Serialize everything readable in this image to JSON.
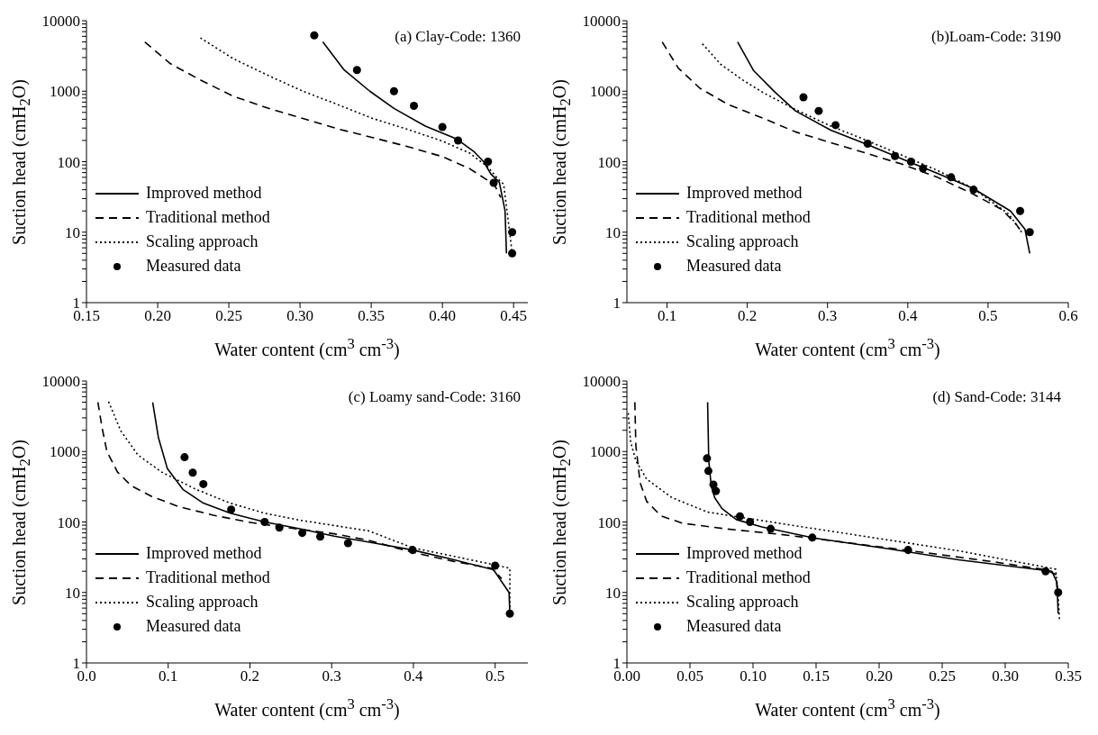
{
  "chart_data": [
    {
      "type": "line",
      "title": "(a) Clay-Code: 1360",
      "xlabel": "Water content (cm$^{3}$ cm$^{-3}$)",
      "ylabel": "Suction head (cmH$_{2}$O)",
      "log": "y",
      "legend": "bottom left",
      "grid": false,
      "xlim": [
        0.15,
        0.46
      ],
      "xticks": [
        0.15,
        {
          "value": 0.2,
          "label": "0.20"
        },
        0.25,
        {
          "value": 0.3,
          "label": "0.30"
        },
        0.35,
        {
          "value": 0.4,
          "label": "0.40"
        },
        0.45
      ],
      "ylim": [
        1,
        10000
      ],
      "yticks": [
        1,
        {
          "value": 2,
          "label": null
        },
        {
          "value": 3,
          "label": null
        },
        {
          "value": 4,
          "label": null
        },
        {
          "value": 5,
          "label": null
        },
        {
          "value": 6,
          "label": null
        },
        {
          "value": 7,
          "label": null
        },
        {
          "value": 8,
          "label": null
        },
        {
          "value": 9,
          "label": null
        },
        10,
        {
          "value": 20,
          "label": null
        },
        {
          "value": 30,
          "label": null
        },
        {
          "value": 40,
          "label": null
        },
        {
          "value": 50,
          "label": null
        },
        {
          "value": 60,
          "label": null
        },
        {
          "value": 70,
          "label": null
        },
        {
          "value": 80,
          "label": null
        },
        {
          "value": 90,
          "label": null
        },
        100,
        {
          "value": 200,
          "label": null
        },
        {
          "value": 300,
          "label": null
        },
        {
          "value": 400,
          "label": null
        },
        {
          "value": 500,
          "label": null
        },
        {
          "value": 600,
          "label": null
        },
        {
          "value": 700,
          "label": null
        },
        {
          "value": 800,
          "label": null
        },
        {
          "value": 900,
          "label": null
        },
        1000,
        {
          "value": 2000,
          "label": null
        },
        {
          "value": 3000,
          "label": null
        },
        {
          "value": 4000,
          "label": null
        },
        {
          "value": 5000,
          "label": null
        },
        {
          "value": 6000,
          "label": null
        },
        {
          "value": 7000,
          "label": null
        },
        {
          "value": 8000,
          "label": null
        },
        {
          "value": 9000,
          "label": null
        },
        10000
      ],
      "series": [
        {
          "name": "Improved method",
          "type": "line",
          "line_style": "solid",
          "color": "#000000",
          "x": [
            0.316,
            0.331,
            0.349,
            0.366,
            0.388,
            0.41,
            0.422,
            0.429,
            0.434,
            0.44,
            0.444,
            0.445
          ],
          "values": [
            5000,
            2000,
            1000,
            570,
            320,
            210,
            140,
            100,
            67,
            51,
            20,
            5
          ]
        },
        {
          "name": "Traditional method",
          "type": "line",
          "line_style": "dashed",
          "color": "#000000",
          "x": [
            0.191,
            0.209,
            0.229,
            0.253,
            0.278,
            0.302,
            0.327,
            0.351,
            0.375,
            0.4,
            0.419,
            0.432,
            0.437,
            0.441
          ],
          "values": [
            5000,
            2450,
            1480,
            850,
            570,
            410,
            290,
            220,
            165,
            118,
            80,
            54,
            45,
            31
          ]
        },
        {
          "name": "Scaling approach",
          "type": "line",
          "line_style": "dotted",
          "color": "#000000",
          "x": [
            0.23,
            0.253,
            0.278,
            0.302,
            0.327,
            0.351,
            0.375,
            0.4,
            0.419,
            0.432,
            0.439,
            0.443,
            0.446,
            0.449
          ],
          "values": [
            5700,
            2900,
            1660,
            1000,
            640,
            410,
            290,
            196,
            133,
            84,
            57,
            48,
            16,
            5
          ]
        },
        {
          "name": "Measured data",
          "type": "scatter",
          "marker": "circle",
          "color": "#000000",
          "x": [
            0.31,
            0.34,
            0.366,
            0.38,
            0.4,
            0.411,
            0.432,
            0.436,
            0.449,
            0.449
          ],
          "values": [
            6200,
            2000,
            1000,
            620,
            310,
            200,
            100,
            50,
            10,
            5
          ]
        }
      ]
    },
    {
      "type": "line",
      "title": "(b)Loam-Code: 3190",
      "xlabel": "Water content (cm$^{3}$ cm$^{-3}$)",
      "ylabel": "Suction head (cmH$_{2}$O)",
      "log": "y",
      "legend": "bottom left",
      "grid": false,
      "xlim": [
        0.05,
        0.6
      ],
      "xticks": [
        0.1,
        0.2,
        0.3,
        0.4,
        0.5,
        0.6
      ],
      "ylim": [
        1,
        10000
      ],
      "yticks": [
        1,
        {
          "value": 2,
          "label": null
        },
        {
          "value": 3,
          "label": null
        },
        {
          "value": 4,
          "label": null
        },
        {
          "value": 5,
          "label": null
        },
        {
          "value": 6,
          "label": null
        },
        {
          "value": 7,
          "label": null
        },
        {
          "value": 8,
          "label": null
        },
        {
          "value": 9,
          "label": null
        },
        10,
        {
          "value": 20,
          "label": null
        },
        {
          "value": 30,
          "label": null
        },
        {
          "value": 40,
          "label": null
        },
        {
          "value": 50,
          "label": null
        },
        {
          "value": 60,
          "label": null
        },
        {
          "value": 70,
          "label": null
        },
        {
          "value": 80,
          "label": null
        },
        {
          "value": 90,
          "label": null
        },
        100,
        {
          "value": 200,
          "label": null
        },
        {
          "value": 300,
          "label": null
        },
        {
          "value": 400,
          "label": null
        },
        {
          "value": 500,
          "label": null
        },
        {
          "value": 600,
          "label": null
        },
        {
          "value": 700,
          "label": null
        },
        {
          "value": 800,
          "label": null
        },
        {
          "value": 900,
          "label": null
        },
        1000,
        {
          "value": 2000,
          "label": null
        },
        {
          "value": 3000,
          "label": null
        },
        {
          "value": 4000,
          "label": null
        },
        {
          "value": 5000,
          "label": null
        },
        {
          "value": 6000,
          "label": null
        },
        {
          "value": 7000,
          "label": null
        },
        {
          "value": 8000,
          "label": null
        },
        {
          "value": 9000,
          "label": null
        },
        10000
      ],
      "series": [
        {
          "name": "Improved method",
          "type": "line",
          "line_style": "solid",
          "color": "#000000",
          "x": [
            0.188,
            0.208,
            0.234,
            0.26,
            0.304,
            0.349,
            0.393,
            0.437,
            0.481,
            0.528,
            0.546,
            0.552
          ],
          "values": [
            5000,
            1950,
            980,
            525,
            280,
            176,
            109,
            68,
            42,
            20,
            11,
            5
          ]
        },
        {
          "name": "Traditional method",
          "type": "line",
          "line_style": "dashed",
          "color": "#000000",
          "x": [
            0.094,
            0.114,
            0.141,
            0.176,
            0.216,
            0.26,
            0.304,
            0.349,
            0.393,
            0.437,
            0.481,
            0.517,
            0.535,
            0.543
          ],
          "values": [
            5000,
            2130,
            1100,
            650,
            430,
            265,
            186,
            131,
            92,
            60,
            35,
            21,
            13,
            9.6
          ]
        },
        {
          "name": "Scaling approach",
          "type": "line",
          "line_style": "dotted",
          "color": "#000000",
          "x": [
            0.144,
            0.167,
            0.194,
            0.22,
            0.26,
            0.304,
            0.349,
            0.393,
            0.437,
            0.481,
            0.526,
            0.543
          ],
          "values": [
            4700,
            2400,
            1450,
            950,
            550,
            320,
            200,
            123,
            75,
            42,
            18,
            9.6
          ]
        },
        {
          "name": "Measured data",
          "type": "scatter",
          "marker": "circle",
          "color": "#000000",
          "x": [
            0.27,
            0.289,
            0.31,
            0.35,
            0.384,
            0.404,
            0.419,
            0.454,
            0.482,
            0.54,
            0.552
          ],
          "values": [
            820,
            525,
            330,
            180,
            120,
            100,
            80,
            60,
            40,
            20,
            10
          ]
        }
      ]
    },
    {
      "type": "line",
      "title": "(c) Loamy sand-Code: 3160",
      "xlabel": "Water content (cm$^{3}$ cm$^{-3}$)",
      "ylabel": "Suction head (cmH$_{2}$O)",
      "log": "y",
      "legend": "bottom left",
      "grid": false,
      "xlim": [
        0,
        0.54
      ],
      "xticks": [
        {
          "value": 0,
          "label": "0.0"
        },
        0.1,
        0.2,
        0.3,
        0.4,
        0.5
      ],
      "ylim": [
        1,
        10000
      ],
      "yticks": [
        1,
        {
          "value": 2,
          "label": null
        },
        {
          "value": 3,
          "label": null
        },
        {
          "value": 4,
          "label": null
        },
        {
          "value": 5,
          "label": null
        },
        {
          "value": 6,
          "label": null
        },
        {
          "value": 7,
          "label": null
        },
        {
          "value": 8,
          "label": null
        },
        {
          "value": 9,
          "label": null
        },
        10,
        {
          "value": 20,
          "label": null
        },
        {
          "value": 30,
          "label": null
        },
        {
          "value": 40,
          "label": null
        },
        {
          "value": 50,
          "label": null
        },
        {
          "value": 60,
          "label": null
        },
        {
          "value": 70,
          "label": null
        },
        {
          "value": 80,
          "label": null
        },
        {
          "value": 90,
          "label": null
        },
        100,
        {
          "value": 200,
          "label": null
        },
        {
          "value": 300,
          "label": null
        },
        {
          "value": 400,
          "label": null
        },
        {
          "value": 500,
          "label": null
        },
        {
          "value": 600,
          "label": null
        },
        {
          "value": 700,
          "label": null
        },
        {
          "value": 800,
          "label": null
        },
        {
          "value": 900,
          "label": null
        },
        1000,
        {
          "value": 2000,
          "label": null
        },
        {
          "value": 3000,
          "label": null
        },
        {
          "value": 4000,
          "label": null
        },
        {
          "value": 5000,
          "label": null
        },
        {
          "value": 6000,
          "label": null
        },
        {
          "value": 7000,
          "label": null
        },
        {
          "value": 8000,
          "label": null
        },
        {
          "value": 9000,
          "label": null
        },
        10000
      ],
      "series": [
        {
          "name": "Improved method",
          "type": "line",
          "line_style": "solid",
          "color": "#000000",
          "x": [
            0.081,
            0.088,
            0.099,
            0.118,
            0.143,
            0.176,
            0.218,
            0.261,
            0.303,
            0.345,
            0.399,
            0.45,
            0.498,
            0.517,
            0.518
          ],
          "values": [
            5000,
            1580,
            570,
            290,
            185,
            133,
            100,
            80,
            63,
            52,
            40,
            29,
            21,
            10,
            5
          ]
        },
        {
          "name": "Traditional method",
          "type": "line",
          "line_style": "dashed",
          "color": "#000000",
          "x": [
            0.014,
            0.019,
            0.025,
            0.038,
            0.055,
            0.08,
            0.113,
            0.155,
            0.197,
            0.239,
            0.303,
            0.345,
            0.399,
            0.45,
            0.496,
            0.508
          ],
          "values": [
            5000,
            2200,
            1000,
            510,
            325,
            230,
            165,
            125,
            100,
            85,
            68,
            55,
            37,
            27.5,
            22,
            15.7
          ]
        },
        {
          "name": "Scaling approach",
          "type": "line",
          "line_style": "dotted",
          "color": "#000000",
          "x": [
            0.027,
            0.042,
            0.063,
            0.092,
            0.134,
            0.176,
            0.218,
            0.261,
            0.303,
            0.345,
            0.399,
            0.45,
            0.5,
            0.518,
            0.518
          ],
          "values": [
            5100,
            1960,
            890,
            510,
            290,
            185,
            133,
            106,
            89,
            75,
            43,
            32.5,
            24.5,
            22,
            5
          ]
        },
        {
          "name": "Measured data",
          "type": "scatter",
          "marker": "circle",
          "color": "#000000",
          "x": [
            0.12,
            0.13,
            0.143,
            0.177,
            0.218,
            0.236,
            0.264,
            0.286,
            0.32,
            0.399,
            0.5,
            0.518
          ],
          "values": [
            830,
            500,
            345,
            150,
            100,
            83,
            70,
            62,
            50,
            40,
            24,
            5
          ]
        }
      ]
    },
    {
      "type": "line",
      "title": "(d) Sand-Code: 3144",
      "xlabel": "Water content (cm$^{3}$ cm$^{-3}$)",
      "ylabel": "Suction head (cmH$_{2}$O)",
      "log": "y",
      "legend": "bottom left",
      "grid": false,
      "xlim": [
        0,
        0.35
      ],
      "xticks": [
        {
          "value": 0,
          "label": "0.00"
        },
        0.05,
        {
          "value": 0.1,
          "label": "0.10"
        },
        0.15,
        {
          "value": 0.2,
          "label": "0.20"
        },
        0.25,
        {
          "value": 0.3,
          "label": "0.30"
        },
        0.35
      ],
      "ylim": [
        1,
        10000
      ],
      "yticks": [
        1,
        {
          "value": 2,
          "label": null
        },
        {
          "value": 3,
          "label": null
        },
        {
          "value": 4,
          "label": null
        },
        {
          "value": 5,
          "label": null
        },
        {
          "value": 6,
          "label": null
        },
        {
          "value": 7,
          "label": null
        },
        {
          "value": 8,
          "label": null
        },
        {
          "value": 9,
          "label": null
        },
        10,
        {
          "value": 20,
          "label": null
        },
        {
          "value": 30,
          "label": null
        },
        {
          "value": 40,
          "label": null
        },
        {
          "value": 50,
          "label": null
        },
        {
          "value": 60,
          "label": null
        },
        {
          "value": 70,
          "label": null
        },
        {
          "value": 80,
          "label": null
        },
        {
          "value": 90,
          "label": null
        },
        100,
        {
          "value": 200,
          "label": null
        },
        {
          "value": 300,
          "label": null
        },
        {
          "value": 400,
          "label": null
        },
        {
          "value": 500,
          "label": null
        },
        {
          "value": 600,
          "label": null
        },
        {
          "value": 700,
          "label": null
        },
        {
          "value": 800,
          "label": null
        },
        {
          "value": 900,
          "label": null
        },
        1000,
        {
          "value": 2000,
          "label": null
        },
        {
          "value": 3000,
          "label": null
        },
        {
          "value": 4000,
          "label": null
        },
        {
          "value": 5000,
          "label": null
        },
        {
          "value": 6000,
          "label": null
        },
        {
          "value": 7000,
          "label": null
        },
        {
          "value": 8000,
          "label": null
        },
        {
          "value": 9000,
          "label": null
        },
        10000
      ],
      "series": [
        {
          "name": "Improved method",
          "type": "line",
          "line_style": "solid",
          "color": "#000000",
          "x": [
            0.064,
            0.0649,
            0.0669,
            0.0697,
            0.0754,
            0.0868,
            0.107,
            0.149,
            0.206,
            0.263,
            0.337,
            0.341,
            0.342
          ],
          "values": [
            5000,
            740,
            320,
            220,
            155,
            108,
            85,
            59,
            42,
            29,
            20,
            14,
            5
          ]
        },
        {
          "name": "Traditional method",
          "type": "line",
          "line_style": "dashed",
          "color": "#000000",
          "x": [
            0.0063,
            0.0071,
            0.0105,
            0.0157,
            0.027,
            0.044,
            0.078,
            0.121,
            0.178,
            0.235,
            0.292,
            0.332,
            0.34,
            0.342
          ],
          "values": [
            5000,
            1200,
            360,
            196,
            122,
            96,
            80,
            67,
            50,
            37,
            27,
            21,
            18,
            8.7
          ]
        },
        {
          "name": "Scaling approach",
          "type": "line",
          "line_style": "dotted",
          "color": "#000000",
          "x": [
            0.001,
            0.003,
            0.0071,
            0.0157,
            0.0356,
            0.064,
            0.0925,
            0.149,
            0.206,
            0.263,
            0.34,
            0.342,
            0.343
          ],
          "values": [
            3500,
            1350,
            740,
            405,
            222,
            138,
            115,
            80,
            56,
            39,
            21.4,
            8.7,
            4.2
          ]
        },
        {
          "name": "Measured data",
          "type": "scatter",
          "marker": "circle",
          "color": "#000000",
          "x": [
            0.0635,
            0.0646,
            0.0686,
            0.0706,
            0.0896,
            0.0976,
            0.114,
            0.147,
            0.223,
            0.332,
            0.342
          ],
          "values": [
            800,
            530,
            340,
            275,
            120,
            100,
            80,
            60,
            40,
            20,
            10
          ]
        }
      ]
    }
  ]
}
